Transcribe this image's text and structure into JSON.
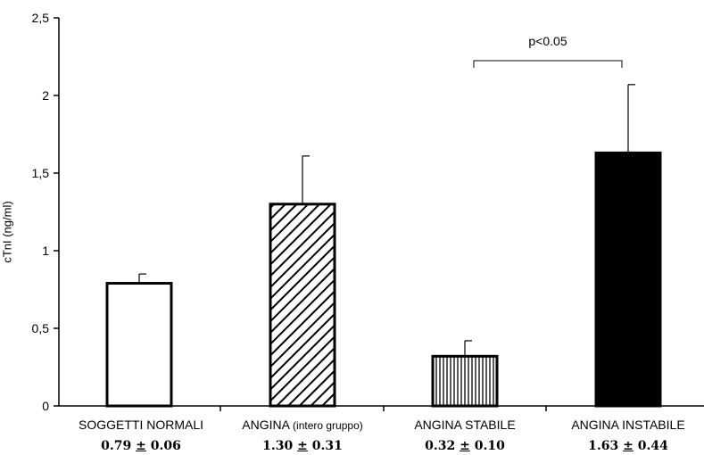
{
  "chart_data": {
    "type": "bar",
    "ylabel": "cTnI (ng/ml)",
    "ylim": [
      0,
      2.5
    ],
    "yticks": [
      "0",
      "0,5",
      "1",
      "1,5",
      "2",
      "2,5"
    ],
    "yticks_values": [
      0,
      0.5,
      1,
      1.5,
      2,
      2.5
    ],
    "grid": false,
    "categories": [
      {
        "main": "SOGGETTI  NORMALI",
        "sub": ""
      },
      {
        "main": "ANGINA ",
        "sub": "(intero gruppo)"
      },
      {
        "main": "ANGINA STABILE",
        "sub": ""
      },
      {
        "main": "ANGINA INSTABILE",
        "sub": ""
      }
    ],
    "values": [
      0.79,
      1.3,
      0.32,
      1.63
    ],
    "errors": [
      0.06,
      0.31,
      0.1,
      0.44
    ],
    "stats": [
      {
        "mean": "0.79",
        "pm": "±",
        "sd": "0.06"
      },
      {
        "mean": "1.30",
        "pm": "±",
        "sd": "0.31"
      },
      {
        "mean": "0.32",
        "pm": "±",
        "sd": "0.10"
      },
      {
        "mean": "1.63",
        "pm": "±",
        "sd": "0.44"
      }
    ],
    "fills": [
      "white",
      "diagonal-hatch",
      "vertical-hatch",
      "black"
    ],
    "annotation": {
      "text": "p<0.05",
      "between": [
        2,
        3
      ]
    }
  }
}
